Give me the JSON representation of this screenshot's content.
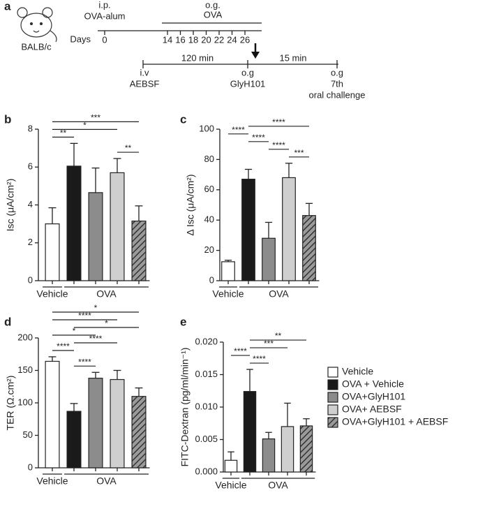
{
  "schematic": {
    "panel": "a",
    "strain": "BALB/c",
    "ip": "i.p.",
    "ip_agent": "OVA-alum",
    "og": "o.g.",
    "og_agent": "OVA",
    "days": {
      "label": "Days",
      "values": [
        0,
        14,
        16,
        18,
        20,
        22,
        24,
        26
      ]
    },
    "steps": [
      {
        "route": "i.v",
        "agent": "AEBSF"
      },
      {
        "route": "o.g",
        "agent": "GlyH101"
      },
      {
        "route": "o.g",
        "agent": "7th",
        "note": "oral challenge"
      }
    ],
    "intervals": [
      "120 min",
      "15 min"
    ]
  },
  "legend": [
    {
      "name": "Vehicle",
      "color": "#ffffff"
    },
    {
      "name": "OVA + Vehicle",
      "color": "#1a1a1a"
    },
    {
      "name": "OVA+GlyH101",
      "color": "#8c8c8c"
    },
    {
      "name": "OVA+ AEBSF",
      "color": "#cfcfcf"
    },
    {
      "name": "OVA+GlyH101 + AEBSF",
      "color": "#777777",
      "hatch": true
    }
  ],
  "chart_data": [
    {
      "type": "bar",
      "panel": "b",
      "ylabel": "Isc (μA/cm²)",
      "categories": [
        null,
        null,
        null,
        null,
        null
      ],
      "values": [
        3.0,
        6.05,
        4.65,
        5.7,
        3.15
      ],
      "errors": [
        0.85,
        1.2,
        1.3,
        0.75,
        0.8
      ],
      "ylim": [
        0,
        8
      ],
      "yticks": [
        0,
        2,
        4,
        6,
        8
      ],
      "groups": [
        {
          "label": "Vehicle",
          "from": 0,
          "to": 0
        },
        {
          "label": "OVA",
          "from": 1,
          "to": 4
        }
      ],
      "significance": [
        {
          "from": 0,
          "to": 4,
          "label": "***"
        },
        {
          "from": 0,
          "to": 1,
          "label": "**"
        },
        {
          "from": 0,
          "to": 3,
          "label": "*"
        },
        {
          "from": 3,
          "to": 4,
          "label": "**"
        }
      ]
    },
    {
      "type": "bar",
      "panel": "c",
      "ylabel": "Δ Isc (μA/cm²)",
      "categories": [
        null,
        null,
        null,
        null,
        null
      ],
      "values": [
        12.5,
        67,
        28,
        68,
        43
      ],
      "errors": [
        1,
        6.5,
        10.5,
        9.5,
        8
      ],
      "ylim": [
        0,
        100
      ],
      "yticks": [
        0,
        20,
        40,
        60,
        80,
        100
      ],
      "groups": [
        {
          "label": "Vehicle",
          "from": 0,
          "to": 0
        },
        {
          "label": "OVA",
          "from": 1,
          "to": 4
        }
      ],
      "significance": [
        {
          "from": 3,
          "to": 4,
          "label": "***"
        },
        {
          "from": 0,
          "to": 1,
          "label": "****"
        },
        {
          "from": 2,
          "to": 3,
          "label": "****"
        },
        {
          "from": 1,
          "to": 4,
          "label": "****"
        },
        {
          "from": 1,
          "to": 2,
          "label": "****"
        }
      ]
    },
    {
      "type": "bar",
      "panel": "d",
      "ylabel": "TER (Ω.cm²)",
      "categories": [
        null,
        null,
        null,
        null,
        null
      ],
      "values": [
        164,
        87,
        138,
        136,
        110
      ],
      "errors": [
        7,
        12,
        9,
        14,
        13
      ],
      "ylim": [
        0,
        200
      ],
      "yticks": [
        0,
        50,
        100,
        150,
        200
      ],
      "groups": [
        {
          "label": "Vehicle",
          "from": 0,
          "to": 0
        },
        {
          "label": "OVA",
          "from": 1,
          "to": 4
        }
      ],
      "significance": [
        {
          "from": 0,
          "to": 4,
          "label": "*"
        },
        {
          "from": 0,
          "to": 3,
          "label": "****"
        },
        {
          "from": 0,
          "to": 2,
          "label": "*"
        },
        {
          "from": 0,
          "to": 1,
          "label": "****"
        },
        {
          "from": 1,
          "to": 4,
          "label": "*"
        },
        {
          "from": 1,
          "to": 3,
          "label": "****"
        },
        {
          "from": 1,
          "to": 2,
          "label": "****"
        }
      ]
    },
    {
      "type": "bar",
      "panel": "e",
      "ylabel": "FITC-Dextran (pg/ml/min⁻¹)",
      "categories": [
        null,
        null,
        null,
        null,
        null
      ],
      "values": [
        0.0018,
        0.0124,
        0.0051,
        0.007,
        0.0071
      ],
      "errors": [
        0.0013,
        0.0034,
        0.001,
        0.0036,
        0.0011
      ],
      "ylim": [
        0,
        0.02
      ],
      "yticks": [
        {
          "value": 0,
          "label": "0.000"
        },
        {
          "value": 0.005,
          "label": "0.005"
        },
        {
          "value": 0.01,
          "label": "0.010"
        },
        {
          "value": 0.015,
          "label": "0.015"
        },
        {
          "value": 0.02,
          "label": "0.020"
        }
      ],
      "groups": [
        {
          "label": "Vehicle",
          "from": 0,
          "to": 0
        },
        {
          "label": "OVA",
          "from": 1,
          "to": 4
        }
      ],
      "significance": [
        {
          "from": 1,
          "to": 4,
          "label": "**"
        },
        {
          "from": 1,
          "to": 3,
          "label": "***"
        },
        {
          "from": 1,
          "to": 2,
          "label": "****"
        },
        {
          "from": 0,
          "to": 1,
          "label": "****"
        }
      ]
    }
  ]
}
